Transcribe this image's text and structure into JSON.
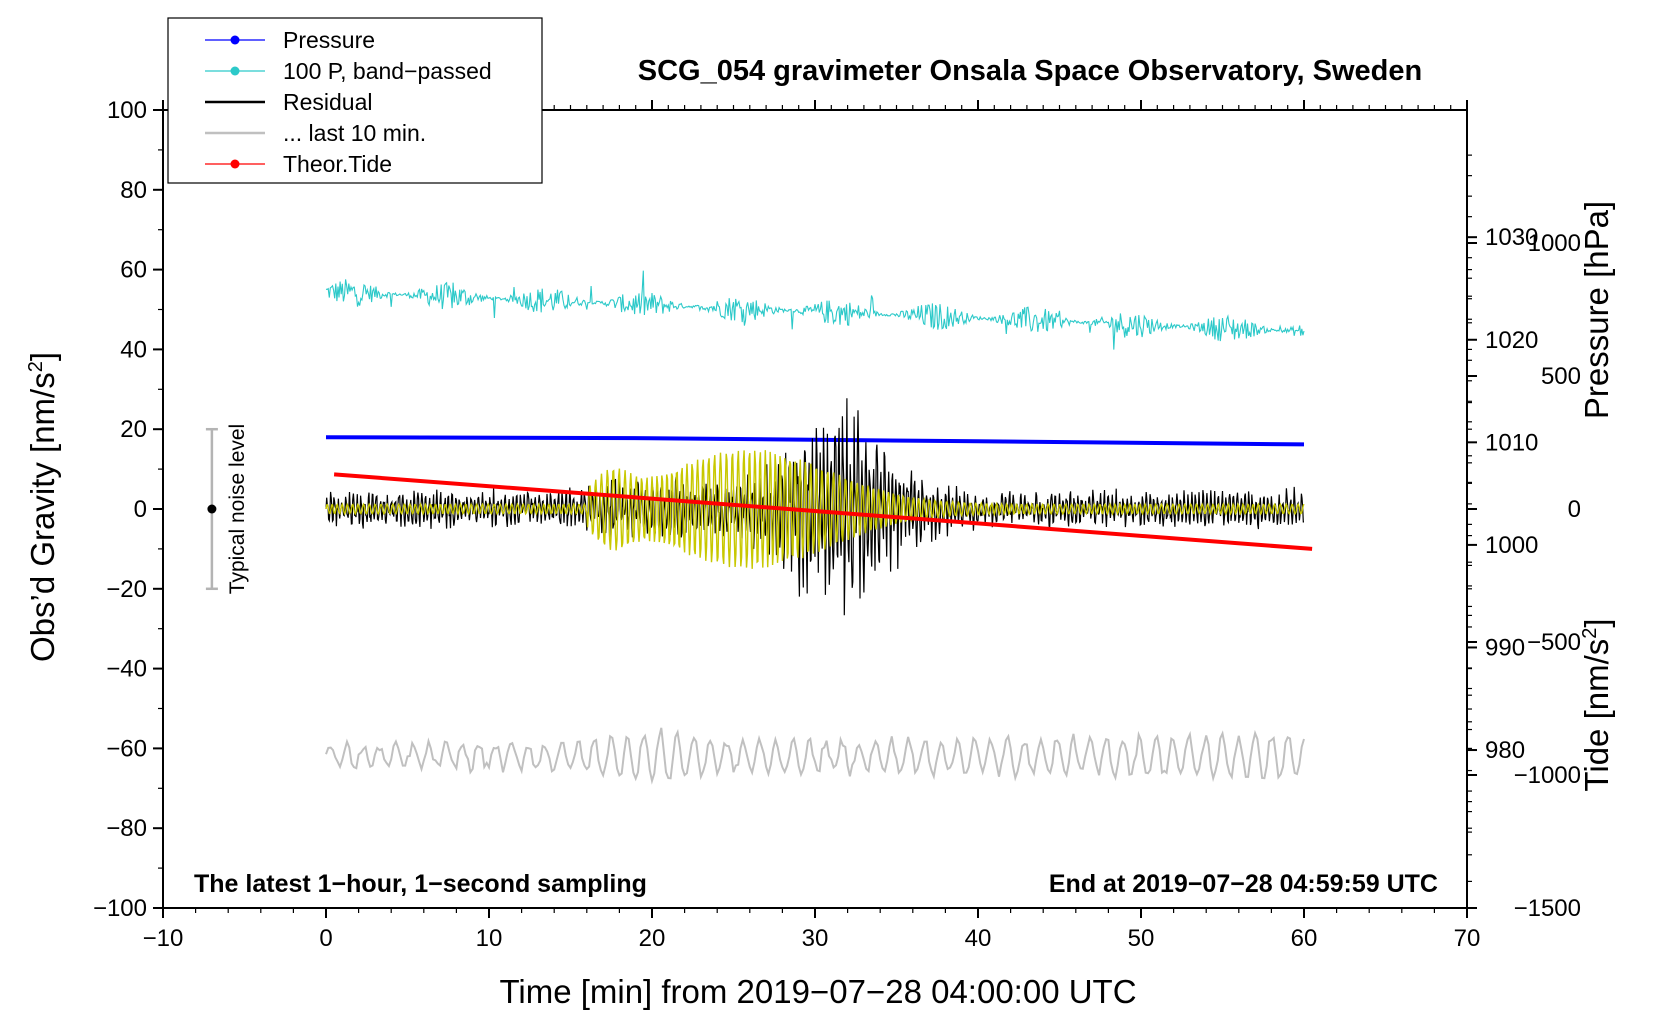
{
  "chart_data": {
    "type": "line",
    "title": "SCG_054 gravimeter Onsala Space Observatory, Sweden",
    "xlabel": "Time [min] from 2019−07−28 04:00:00 UTC",
    "ylabel": "Obs’d Gravity [nm/s",
    "ylabel_sup": "2",
    "ylabel_close": "]",
    "y2_pressure_label": "Pressure [hPa]",
    "y2_tide_label": "Tide [nm/s",
    "y2_tide_sup": "2",
    "y2_tide_close": "]",
    "xlim": [
      -10,
      70
    ],
    "ylim": [
      -100,
      100
    ],
    "pressure_lim": [
      964.6,
      1042.4
    ],
    "tide_lim": [
      -1500,
      1500
    ],
    "grid": false,
    "legend_position": "top-left",
    "x_ticks": [
      {
        "v": -10,
        "label": "−10"
      },
      {
        "v": 0,
        "label": "0"
      },
      {
        "v": 10,
        "label": "10"
      },
      {
        "v": 20,
        "label": "20"
      },
      {
        "v": 30,
        "label": "30"
      },
      {
        "v": 40,
        "label": "40"
      },
      {
        "v": 50,
        "label": "50"
      },
      {
        "v": 60,
        "label": "60"
      },
      {
        "v": 70,
        "label": "70"
      }
    ],
    "y_ticks": [
      {
        "v": 100,
        "label": "100"
      },
      {
        "v": 80,
        "label": "80"
      },
      {
        "v": 60,
        "label": "60"
      },
      {
        "v": 40,
        "label": "40"
      },
      {
        "v": 20,
        "label": "20"
      },
      {
        "v": 0,
        "label": "0"
      },
      {
        "v": -20,
        "label": "−20"
      },
      {
        "v": -40,
        "label": "−40"
      },
      {
        "v": -60,
        "label": "−60"
      },
      {
        "v": -80,
        "label": "−80"
      },
      {
        "v": -100,
        "label": "−100"
      }
    ],
    "pressure_ticks": [
      {
        "v": 1030,
        "label": "1030"
      },
      {
        "v": 1020,
        "label": "1020"
      },
      {
        "v": 1010,
        "label": "1010"
      },
      {
        "v": 1000,
        "label": "1000"
      },
      {
        "v": 990,
        "label": "990"
      },
      {
        "v": 980,
        "label": "980"
      }
    ],
    "tide_ticks": [
      {
        "v": 1000,
        "label": "1000"
      },
      {
        "v": 500,
        "label": "500"
      },
      {
        "v": 0,
        "label": "0"
      },
      {
        "v": -500,
        "label": "−500"
      },
      {
        "v": -1000,
        "label": "−1000"
      },
      {
        "v": -1500,
        "label": "−1500"
      }
    ],
    "legend": [
      {
        "label": "Pressure",
        "color": "#0000ff",
        "marker": true
      },
      {
        "label": "100 P, band−passed",
        "color": "#2cc9c9",
        "marker": true
      },
      {
        "label": "Residual",
        "color": "#000000",
        "marker": false
      },
      {
        "label": "... last 10 min.",
        "color": "#c0c0c0",
        "marker": false
      },
      {
        "label": "Theor.Tide",
        "color": "#ff0000",
        "marker": true
      }
    ],
    "annotations": {
      "noise_label": "Typical noise level",
      "noise_center": 0,
      "noise_half_range": 20,
      "noise_x": -7,
      "left_note": "The latest 1−hour, 1−second sampling",
      "right_note": "End at 2019−07−28 04:59:59 UTC"
    },
    "series": [
      {
        "name": "Pressure",
        "axis": "pressure",
        "color": "#0000ff",
        "x_range": [
          0,
          60
        ],
        "start": 1010.5,
        "end": 1009.8
      },
      {
        "name": "100 P, band−passed",
        "axis": "gravity",
        "color": "#2cc9c9",
        "x_range": [
          0,
          60
        ],
        "start": 54.5,
        "end": 44.5,
        "noise_amplitude": 3.5
      },
      {
        "name": "Residual",
        "axis": "gravity",
        "color": "#000000",
        "x_range": [
          0,
          60
        ],
        "baseline": 0,
        "max_amplitude": 29,
        "peak_minute": 31.5,
        "background_amplitude": 5
      },
      {
        "name": "Residual low-pass",
        "axis": "gravity",
        "color": "#c8c800",
        "x_range": [
          0,
          60
        ],
        "max_amplitude": 15,
        "onset_minute": 16,
        "peak_minute": 26
      },
      {
        "name": "... last 10 min.",
        "axis": "gravity",
        "color": "#c0c0c0",
        "x_range": [
          0,
          60
        ],
        "baseline": -62,
        "amplitude_range": [
          -69,
          -52
        ]
      },
      {
        "name": "Theor.Tide",
        "axis": "tide",
        "color": "#ff0000",
        "x_range": [
          0.5,
          60.5
        ],
        "start": 130,
        "end": -150
      }
    ]
  }
}
